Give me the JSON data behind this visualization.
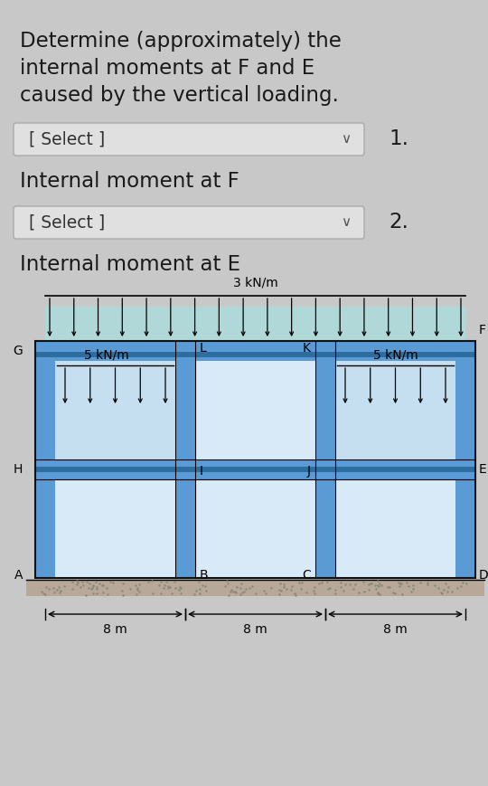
{
  "bg_color": "#c8c8c8",
  "text_color": "#1a1a1a",
  "title_lines": [
    "Determine (approximately) the",
    "internal moments at F and E",
    "caused by the vertical loading."
  ],
  "select_box1_text": "[ Select ]",
  "select_box2_text": "[ Select ]",
  "label1": "1.",
  "label2": "2.",
  "sublabel1": "Internal moment at F",
  "sublabel2": "Internal moment at E",
  "frame_color": "#5b9bd5",
  "frame_dark": "#2e6da0",
  "panel_light": "#c5dff0",
  "panel_lighter": "#d8eaf8",
  "sky_color": "#b0d8d8",
  "ground_fill": "#b8a898",
  "dimension": "8 m",
  "load_top_label": "3 kN/m",
  "load_mid_label": "5 kN/m",
  "node_labels": [
    "G",
    "F",
    "H",
    "E",
    "A",
    "D",
    "L",
    "K",
    "I",
    "J",
    "B",
    "C"
  ]
}
